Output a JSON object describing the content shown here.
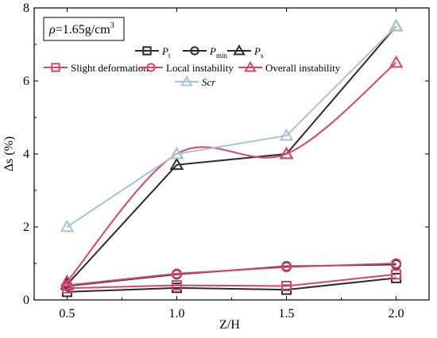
{
  "chart_data": {
    "type": "line",
    "xlabel": "Z/H",
    "ylabel": "Δs (%)",
    "xlim": [
      0.35,
      2.15
    ],
    "ylim": [
      0,
      8
    ],
    "x_ticks": [
      "0.5",
      "1.0",
      "1.5",
      "2.0"
    ],
    "y_ticks": [
      "0",
      "2",
      "4",
      "6",
      "8"
    ],
    "annotation": {
      "rho_symbol": "ρ",
      "rho_value": "=1.65g/cm",
      "rho_exp": "3"
    },
    "x": [
      0.5,
      1.0,
      1.5,
      2.0
    ],
    "series": [
      {
        "name": "P",
        "sub": "t",
        "marker": "square",
        "color": "#2b2b2b",
        "smooth": false,
        "values": [
          0.22,
          0.33,
          0.28,
          0.6
        ]
      },
      {
        "name": "P",
        "sub": "min",
        "marker": "circle",
        "color": "#2b2b2b",
        "smooth": false,
        "values": [
          0.38,
          0.7,
          0.92,
          0.97
        ]
      },
      {
        "name": "P",
        "sub": "s",
        "marker": "triangle",
        "color": "#2b2b2b",
        "smooth": false,
        "values": [
          0.42,
          3.7,
          4.0,
          7.5
        ]
      },
      {
        "name": "Slight deformation",
        "sub": "",
        "marker": "square",
        "color": "#d9446b",
        "smooth": false,
        "values": [
          0.32,
          0.4,
          0.38,
          0.7
        ]
      },
      {
        "name": "Local instability",
        "sub": "",
        "marker": "circle",
        "color": "#d9446b",
        "smooth": false,
        "values": [
          0.4,
          0.72,
          0.9,
          1.0
        ]
      },
      {
        "name": "Overall instability",
        "sub": "",
        "marker": "triangle",
        "color": "#d9446b",
        "smooth": true,
        "values": [
          0.5,
          4.0,
          4.0,
          6.5
        ]
      },
      {
        "name": "Scr",
        "sub": "",
        "marker": "triangle",
        "color": "#a7c4d6",
        "smooth": false,
        "values": [
          2.0,
          4.0,
          4.5,
          7.5
        ]
      }
    ]
  }
}
